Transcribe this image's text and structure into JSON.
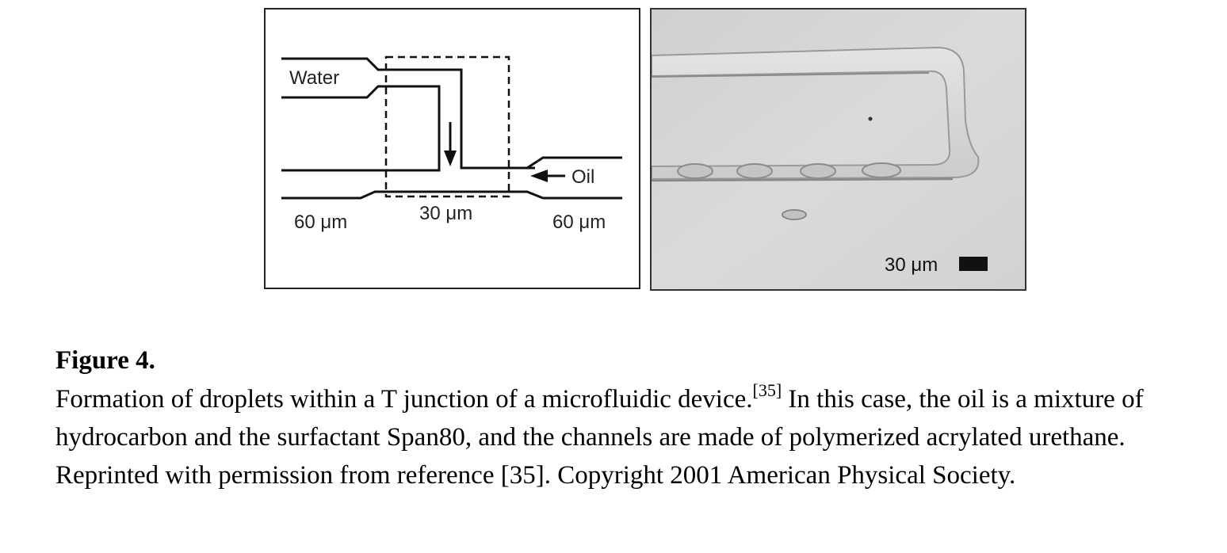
{
  "schematic": {
    "label_water": "Water",
    "label_oil": "Oil",
    "label_left_width": "60 μm",
    "label_mid_width": "30 μm",
    "label_right_width": "60 μm"
  },
  "micrograph": {
    "scale_label": "30 μm"
  },
  "caption": {
    "title": "Figure 4.",
    "text_part1": "Formation of droplets within a T junction of a microfluidic device.",
    "citation": "[35]",
    "text_part2": " In this case, the oil is a mixture of hydrocarbon and the surfactant Span80, and the channels are made of polymerized acrylated urethane. Reprinted with permission from reference [35]. Copyright 2001 American Physical Society."
  }
}
